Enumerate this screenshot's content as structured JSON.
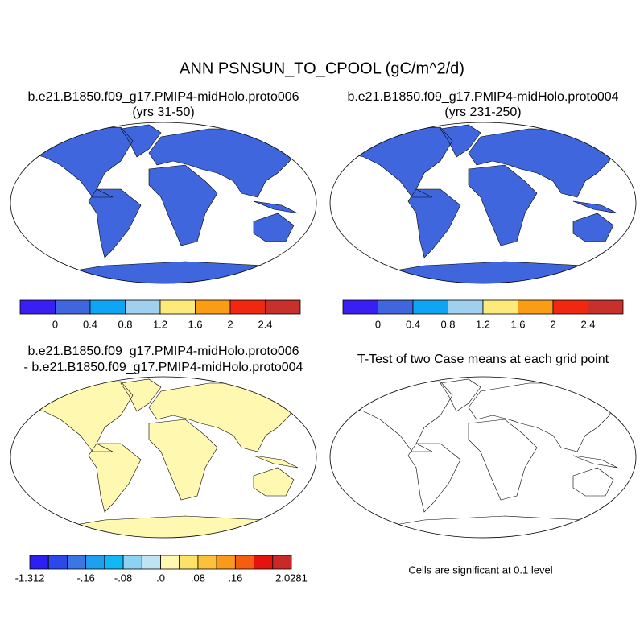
{
  "title": "ANN PSNSUN_TO_CPOOL (gC/m^2/d)",
  "panels": [
    {
      "title": [
        "b.e21.B1850.f09_g17.PMIP4-midHolo.proto006",
        "(yrs 31-50)"
      ]
    },
    {
      "title": [
        "b.e21.B1850.f09_g17.PMIP4-midHolo.proto004",
        "(yrs 231-250)"
      ]
    },
    {
      "title": [
        "b.e21.B1850.f09_g17.PMIP4-midHolo.proto006",
        "- b.e21.B1850.f09_g17.PMIP4-midHolo.proto004"
      ]
    },
    {
      "title": [
        "T-Test of two Case means at each grid point"
      ]
    }
  ],
  "colorbars": [
    {
      "colors": [
        "#3a1ff5",
        "#3f66dd",
        "#0ea5f5",
        "#9fd0ee",
        "#fcea7a",
        "#fb9d14",
        "#f2270f",
        "#c8302c"
      ],
      "ticks": [
        0,
        0.4,
        0.8,
        1.2,
        1.6,
        2,
        2.4
      ]
    },
    {
      "colors": [
        "#2d1ff2",
        "#2b48e8",
        "#3b77e4",
        "#1f9ff0",
        "#12b8f5",
        "#8bd3f0",
        "#bfe3f0",
        "#fff8b0",
        "#fde26a",
        "#fcc03a",
        "#f99a1c",
        "#f55e10",
        "#e4130f",
        "#c92a28"
      ],
      "ticks": [
        {
          "value": -1.312,
          "label": "-1.312"
        },
        {
          "value": -0.16,
          "label": "-.16"
        },
        {
          "value": -0.08,
          "label": "-.08"
        },
        {
          "value": 0,
          "label": ".0"
        },
        {
          "value": 0.08,
          "label": ".08"
        },
        {
          "value": 0.16,
          "label": ".16"
        },
        {
          "value": 2.0281,
          "label": "2.0281"
        }
      ]
    }
  ],
  "note": "Cells are significant at 0.1 level"
}
